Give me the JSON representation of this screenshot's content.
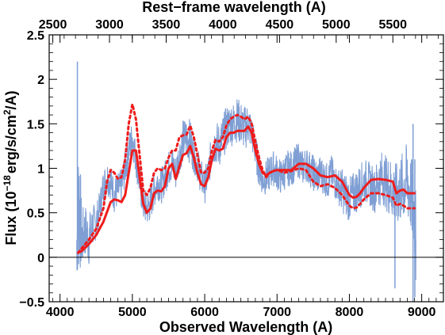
{
  "chart_data": {
    "type": "line",
    "xlabel": "Observed Wavelength (A)",
    "xlabel_top": "Rest−frame wavelength (A)",
    "ylabel": "Flux (10^{-18} erg/s/cm^2/A)",
    "ylabel_parts": {
      "prefix": "Flux (10",
      "exp": "−18",
      "mid": "erg/s/cm",
      "exp2": "2",
      "suffix": "/A)"
    },
    "xlim": [
      3850,
      9300
    ],
    "ylim": [
      -0.5,
      2.5
    ],
    "top_axis_lim": [
      2468,
      5946
    ],
    "xticks": [
      4000,
      5000,
      6000,
      7000,
      8000,
      9000
    ],
    "xtick_labels": [
      "4000",
      "5000",
      "6000",
      "7000",
      "8000",
      "9000"
    ],
    "yticks": [
      -0.5,
      0,
      0.5,
      1,
      1.5,
      2,
      2.5
    ],
    "ytick_labels": [
      "−0.5",
      "0",
      "0.5",
      "1",
      "1.5",
      "2",
      "2.5"
    ],
    "top_ticks": [
      2500,
      3000,
      3500,
      4000,
      4500,
      5000,
      5500
    ],
    "top_tick_labels": [
      "2500",
      "3000",
      "3500",
      "4000",
      "4500",
      "5000",
      "5500"
    ],
    "zero_line": 0,
    "series": [
      {
        "style": "spectrum",
        "color": "#7f9fd4",
        "x": [
          4230,
          4260,
          4300,
          4350,
          4400,
          4450,
          4500,
          4550,
          4600,
          4650,
          4700,
          4750,
          4800,
          4850,
          4900,
          4950,
          5000,
          5050,
          5100,
          5150,
          5200,
          5250,
          5300,
          5350,
          5400,
          5450,
          5500,
          5550,
          5600,
          5650,
          5700,
          5750,
          5800,
          5850,
          5900,
          5950,
          6000,
          6050,
          6100,
          6150,
          6200,
          6250,
          6300,
          6350,
          6400,
          6450,
          6500,
          6550,
          6600,
          6650,
          6700,
          6750,
          6800,
          6850,
          6900,
          6950,
          7000,
          7050,
          7100,
          7150,
          7200,
          7250,
          7300,
          7350,
          7400,
          7450,
          7500,
          7550,
          7600,
          7650,
          7700,
          7750,
          7800,
          7850,
          7900,
          7950,
          8000,
          8050,
          8100,
          8150,
          8200,
          8250,
          8300,
          8350,
          8400,
          8450,
          8500,
          8550,
          8600,
          8650,
          8700,
          8750,
          8800,
          8850,
          8900,
          8920
        ],
        "y": [
          0.1,
          0.7,
          0.2,
          0.3,
          0.2,
          0.35,
          0.4,
          0.55,
          0.8,
          0.9,
          0.85,
          0.7,
          0.75,
          0.8,
          1.0,
          1.2,
          1.35,
          1.1,
          0.85,
          0.6,
          0.55,
          0.6,
          0.75,
          0.85,
          0.8,
          0.9,
          1.0,
          1.05,
          0.95,
          1.15,
          1.3,
          1.35,
          1.3,
          1.15,
          1.05,
          0.9,
          0.8,
          0.95,
          1.2,
          1.3,
          1.25,
          1.35,
          1.45,
          1.5,
          1.5,
          1.55,
          1.5,
          1.45,
          1.5,
          1.4,
          1.2,
          1.0,
          0.85,
          0.9,
          0.95,
          1.0,
          0.95,
          0.9,
          0.95,
          1.0,
          1.0,
          1.05,
          1.1,
          1.0,
          1.05,
          1.0,
          0.95,
          0.9,
          0.95,
          0.9,
          0.85,
          0.95,
          0.85,
          0.8,
          0.75,
          0.7,
          0.65,
          0.7,
          0.75,
          0.8,
          0.85,
          0.85,
          0.8,
          0.75,
          0.85,
          0.9,
          0.85,
          0.8,
          0.75,
          0.7,
          0.75,
          0.8,
          0.85,
          0.7,
          0.5,
          0.2
        ],
        "noise_amplitude": [
          0.35,
          0.9,
          0.35,
          0.3,
          0.3,
          0.25,
          0.2,
          0.2,
          0.2,
          0.2,
          0.2,
          0.2,
          0.2,
          0.2,
          0.2,
          0.2,
          0.2,
          0.2,
          0.2,
          0.2,
          0.2,
          0.2,
          0.2,
          0.2,
          0.2,
          0.2,
          0.2,
          0.2,
          0.2,
          0.2,
          0.25,
          0.25,
          0.25,
          0.2,
          0.2,
          0.2,
          0.2,
          0.2,
          0.2,
          0.25,
          0.25,
          0.25,
          0.25,
          0.25,
          0.25,
          0.25,
          0.25,
          0.25,
          0.25,
          0.2,
          0.2,
          0.2,
          0.15,
          0.2,
          0.2,
          0.2,
          0.2,
          0.2,
          0.2,
          0.2,
          0.2,
          0.2,
          0.2,
          0.2,
          0.2,
          0.2,
          0.2,
          0.2,
          0.2,
          0.2,
          0.2,
          0.2,
          0.2,
          0.2,
          0.25,
          0.25,
          0.25,
          0.25,
          0.25,
          0.25,
          0.25,
          0.25,
          0.25,
          0.25,
          0.3,
          0.3,
          0.3,
          0.35,
          0.35,
          0.35,
          0.4,
          0.4,
          0.45,
          0.45,
          0.5,
          0.5
        ]
      },
      {
        "style": "solid",
        "color": "#ee1c1c",
        "x": [
          4250,
          4300,
          4400,
          4500,
          4600,
          4700,
          4750,
          4800,
          4850,
          4900,
          4950,
          5000,
          5050,
          5100,
          5150,
          5200,
          5250,
          5300,
          5350,
          5400,
          5450,
          5500,
          5550,
          5600,
          5650,
          5700,
          5750,
          5800,
          5850,
          5900,
          5950,
          6000,
          6050,
          6100,
          6150,
          6200,
          6250,
          6300,
          6350,
          6400,
          6450,
          6500,
          6550,
          6600,
          6650,
          6700,
          6750,
          6800,
          6850,
          6900,
          6950,
          7000,
          7100,
          7200,
          7300,
          7400,
          7500,
          7600,
          7700,
          7800,
          7900,
          8000,
          8050,
          8100,
          8150,
          8200,
          8300,
          8400,
          8500,
          8600,
          8650,
          8700,
          8750,
          8800,
          8900
        ],
        "y": [
          0.05,
          0.07,
          0.15,
          0.25,
          0.4,
          0.62,
          0.65,
          0.64,
          0.62,
          0.7,
          0.95,
          1.2,
          1.2,
          0.9,
          0.6,
          0.5,
          0.55,
          0.72,
          0.75,
          0.74,
          0.8,
          1.0,
          1.05,
          0.88,
          1.02,
          1.15,
          1.17,
          1.25,
          1.12,
          0.95,
          0.82,
          0.8,
          0.9,
          1.1,
          1.22,
          1.2,
          1.22,
          1.35,
          1.4,
          1.4,
          1.42,
          1.42,
          1.42,
          1.47,
          1.4,
          1.2,
          1.05,
          0.95,
          0.92,
          0.95,
          0.97,
          0.98,
          0.98,
          0.98,
          1.05,
          1.05,
          1.0,
          0.92,
          0.9,
          0.92,
          0.85,
          0.7,
          0.67,
          0.68,
          0.72,
          0.78,
          0.87,
          0.88,
          0.87,
          0.85,
          0.72,
          0.75,
          0.76,
          0.72,
          0.72
        ]
      },
      {
        "style": "dotted",
        "color": "#ee1c1c",
        "x": [
          4250,
          4300,
          4400,
          4500,
          4600,
          4650,
          4700,
          4750,
          4800,
          4850,
          4900,
          4950,
          5000,
          5050,
          5100,
          5150,
          5200,
          5250,
          5300,
          5350,
          5400,
          5450,
          5500,
          5550,
          5600,
          5650,
          5700,
          5750,
          5800,
          5850,
          5900,
          5950,
          6000,
          6050,
          6100,
          6150,
          6200,
          6250,
          6300,
          6350,
          6400,
          6450,
          6500,
          6550,
          6600,
          6650,
          6700,
          6750,
          6800,
          6850,
          6900,
          6950,
          7000,
          7100,
          7200,
          7300,
          7400,
          7500,
          7600,
          7700,
          7800,
          7900,
          8000,
          8050,
          8100,
          8150,
          8200,
          8300,
          8400,
          8500,
          8600,
          8650,
          8700,
          8750,
          8800,
          8900
        ],
        "y": [
          0.05,
          0.1,
          0.2,
          0.32,
          0.55,
          0.85,
          0.98,
          0.95,
          0.88,
          0.9,
          1.1,
          1.5,
          1.72,
          1.55,
          1.15,
          0.75,
          0.7,
          0.78,
          0.95,
          1.0,
          0.98,
          1.0,
          1.12,
          1.2,
          1.2,
          1.35,
          1.37,
          1.38,
          1.48,
          1.35,
          1.15,
          0.95,
          0.95,
          1.0,
          1.2,
          1.32,
          1.3,
          1.35,
          1.48,
          1.55,
          1.58,
          1.6,
          1.58,
          1.55,
          1.58,
          1.5,
          1.3,
          1.12,
          0.98,
          0.9,
          0.95,
          0.97,
          0.98,
          0.95,
          0.97,
          1.0,
          0.98,
          0.85,
          0.8,
          0.82,
          0.78,
          0.7,
          0.58,
          0.55,
          0.56,
          0.6,
          0.65,
          0.72,
          0.72,
          0.7,
          0.67,
          0.58,
          0.6,
          0.58,
          0.55,
          0.55
        ]
      }
    ]
  }
}
